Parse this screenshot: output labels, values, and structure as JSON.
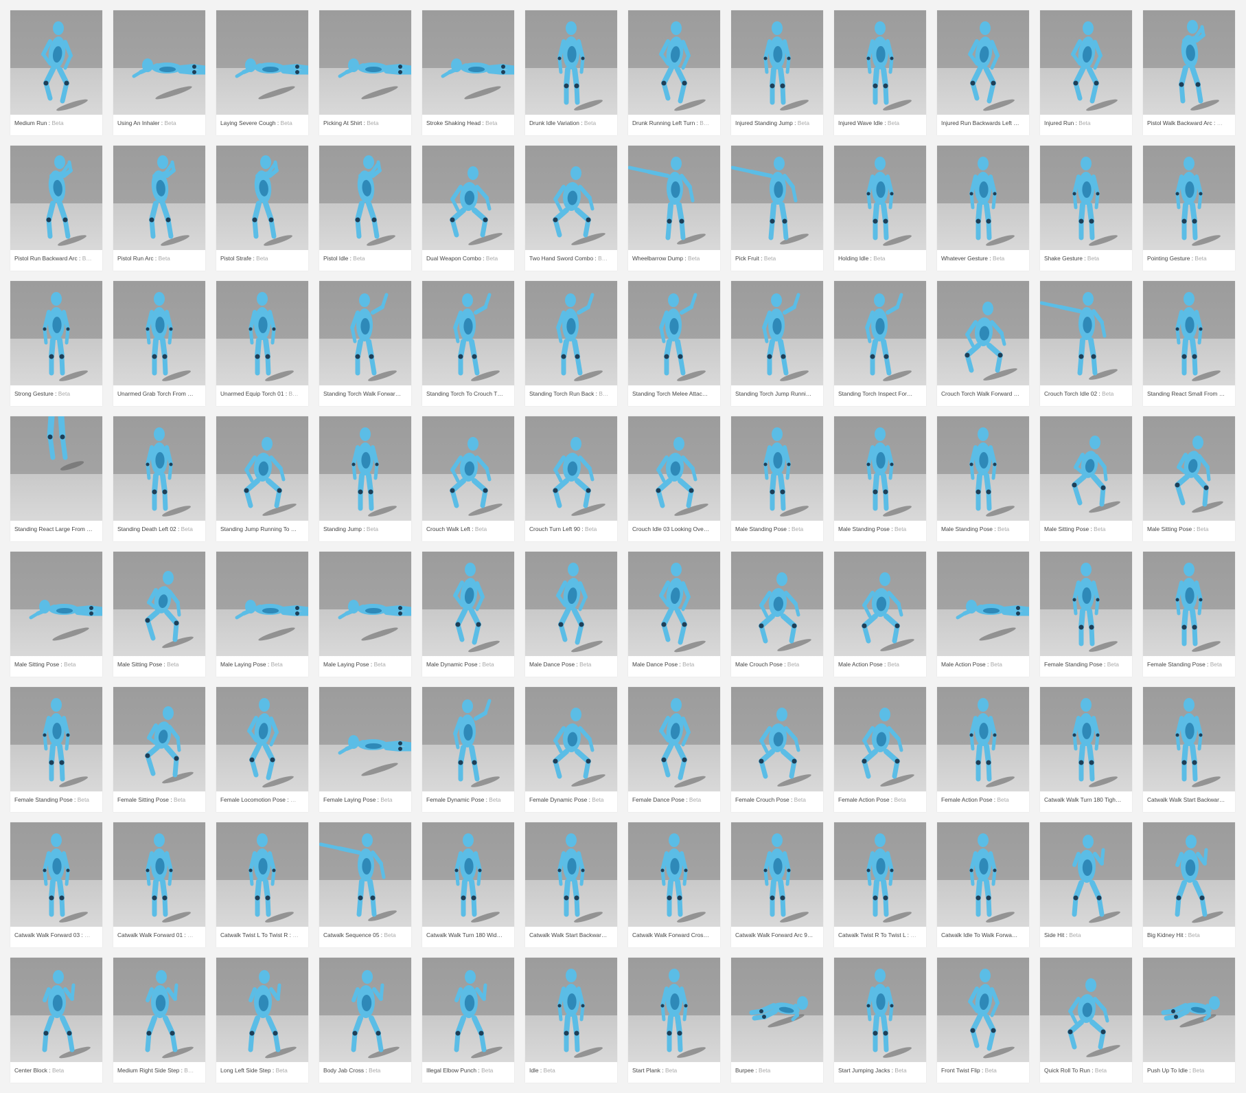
{
  "colors": {
    "figure": "#5bbde6",
    "figure_dark": "#2e89b8",
    "joint": "#1f3f57",
    "shadow": "#5c5c5c"
  },
  "tag_separator": " : ",
  "ellipsis": "…",
  "animations": [
    {
      "name": "Medium Run",
      "tag": "Beta",
      "pose": "run"
    },
    {
      "name": "Using An Inhaler",
      "tag": "Beta",
      "pose": "lying"
    },
    {
      "name": "Laying Severe Cough",
      "tag": "Beta",
      "pose": "lying"
    },
    {
      "name": "Picking At Shirt",
      "tag": "Beta",
      "pose": "lying"
    },
    {
      "name": "Stroke Shaking Head",
      "tag": "Beta",
      "pose": "lying"
    },
    {
      "name": "Drunk Idle Variation",
      "tag": "Beta",
      "pose": "stand"
    },
    {
      "name": "Drunk Running Left Turn",
      "tag": "B…",
      "pose": "run"
    },
    {
      "name": "Injured Standing Jump",
      "tag": "Beta",
      "pose": "stand"
    },
    {
      "name": "Injured Wave Idle",
      "tag": "Beta",
      "pose": "stand"
    },
    {
      "name": "Injured Run Backwards Left …",
      "tag": "",
      "pose": "run"
    },
    {
      "name": "Injured Run",
      "tag": "Beta",
      "pose": "run"
    },
    {
      "name": "Pistol Walk Backward Arc",
      "tag": "…",
      "pose": "aim"
    },
    {
      "name": "Pistol Run Backward Arc",
      "tag": "B…",
      "pose": "aim"
    },
    {
      "name": "Pistol Run Arc",
      "tag": "Beta",
      "pose": "aim"
    },
    {
      "name": "Pistol Strafe",
      "tag": "Beta",
      "pose": "aim"
    },
    {
      "name": "Pistol Idle",
      "tag": "Beta",
      "pose": "aim"
    },
    {
      "name": "Dual Weapon Combo",
      "tag": "Beta",
      "pose": "crouch"
    },
    {
      "name": "Two Hand Sword Combo",
      "tag": "B…",
      "pose": "crouch"
    },
    {
      "name": "Wheelbarrow Dump",
      "tag": "Beta",
      "pose": "tpose"
    },
    {
      "name": "Pick Fruit",
      "tag": "Beta",
      "pose": "tpose"
    },
    {
      "name": "Holding Idle",
      "tag": "Beta",
      "pose": "stand"
    },
    {
      "name": "Whatever Gesture",
      "tag": "Beta",
      "pose": "stand"
    },
    {
      "name": "Shake Gesture",
      "tag": "Beta",
      "pose": "stand"
    },
    {
      "name": "Pointing Gesture",
      "tag": "Beta",
      "pose": "stand"
    },
    {
      "name": "Strong Gesture",
      "tag": "Beta",
      "pose": "stand"
    },
    {
      "name": "Unarmed Grab Torch From …",
      "tag": "",
      "pose": "stand"
    },
    {
      "name": "Unarmed Equip Torch 01",
      "tag": "B…",
      "pose": "stand"
    },
    {
      "name": "Standing Torch Walk Forwar…",
      "tag": "",
      "pose": "wave"
    },
    {
      "name": "Standing Torch To Crouch T…",
      "tag": "",
      "pose": "wave"
    },
    {
      "name": "Standing Torch Run Back",
      "tag": "B…",
      "pose": "wave"
    },
    {
      "name": "Standing Torch Melee Attac…",
      "tag": "",
      "pose": "wave"
    },
    {
      "name": "Standing Torch Jump Runni…",
      "tag": "",
      "pose": "wave"
    },
    {
      "name": "Standing Torch Inspect For…",
      "tag": "",
      "pose": "wave"
    },
    {
      "name": "Crouch Torch Walk Forward …",
      "tag": "",
      "pose": "crouch"
    },
    {
      "name": "Crouch Torch Idle 02",
      "tag": "Beta",
      "pose": "tpose"
    },
    {
      "name": "Standing React Small From …",
      "tag": "",
      "pose": "stand"
    },
    {
      "name": "Standing React Large From …",
      "tag": "",
      "pose": "legs"
    },
    {
      "name": "Standing Death Left 02",
      "tag": "Beta",
      "pose": "stand"
    },
    {
      "name": "Standing Jump Running To …",
      "tag": "",
      "pose": "crouch"
    },
    {
      "name": "Standing Jump",
      "tag": "Beta",
      "pose": "stand"
    },
    {
      "name": "Crouch Walk Left",
      "tag": "Beta",
      "pose": "crouch"
    },
    {
      "name": "Crouch Turn Left 90",
      "tag": "Beta",
      "pose": "crouch"
    },
    {
      "name": "Crouch Idle 03 Looking Ove…",
      "tag": "",
      "pose": "crouch"
    },
    {
      "name": "Male Standing Pose",
      "tag": "Beta",
      "pose": "stand"
    },
    {
      "name": "Male Standing Pose",
      "tag": "Beta",
      "pose": "stand"
    },
    {
      "name": "Male Standing Pose",
      "tag": "Beta",
      "pose": "stand"
    },
    {
      "name": "Male Sitting Pose",
      "tag": "Beta",
      "pose": "sit"
    },
    {
      "name": "Male Sitting Pose",
      "tag": "Beta",
      "pose": "sit"
    },
    {
      "name": "Male Sitting Pose",
      "tag": "Beta",
      "pose": "lying"
    },
    {
      "name": "Male Sitting Pose",
      "tag": "Beta",
      "pose": "sit"
    },
    {
      "name": "Male Laying Pose",
      "tag": "Beta",
      "pose": "lying"
    },
    {
      "name": "Male Laying Pose",
      "tag": "Beta",
      "pose": "lying"
    },
    {
      "name": "Male Dynamic Pose",
      "tag": "Beta",
      "pose": "run"
    },
    {
      "name": "Male Dance Pose",
      "tag": "Beta",
      "pose": "run"
    },
    {
      "name": "Male Dance Pose",
      "tag": "Beta",
      "pose": "run"
    },
    {
      "name": "Male Crouch Pose",
      "tag": "Beta",
      "pose": "crouch"
    },
    {
      "name": "Male Action Pose",
      "tag": "Beta",
      "pose": "crouch"
    },
    {
      "name": "Male Action Pose",
      "tag": "Beta",
      "pose": "lying"
    },
    {
      "name": "Female Standing Pose",
      "tag": "Beta",
      "pose": "stand"
    },
    {
      "name": "Female Standing Pose",
      "tag": "Beta",
      "pose": "stand"
    },
    {
      "name": "Female Standing Pose",
      "tag": "Beta",
      "pose": "stand"
    },
    {
      "name": "Female Sitting Pose",
      "tag": "Beta",
      "pose": "sit"
    },
    {
      "name": "Female Locomotion Pose",
      "tag": "…",
      "pose": "run"
    },
    {
      "name": "Female Laying Pose",
      "tag": "Beta",
      "pose": "lying"
    },
    {
      "name": "Female Dynamic Pose",
      "tag": "Beta",
      "pose": "wave"
    },
    {
      "name": "Female Dynamic Pose",
      "tag": "Beta",
      "pose": "crouch"
    },
    {
      "name": "Female Dance Pose",
      "tag": "Beta",
      "pose": "run"
    },
    {
      "name": "Female Crouch Pose",
      "tag": "Beta",
      "pose": "crouch"
    },
    {
      "name": "Female Action Pose",
      "tag": "Beta",
      "pose": "crouch"
    },
    {
      "name": "Female Action Pose",
      "tag": "Beta",
      "pose": "stand"
    },
    {
      "name": "Catwalk Walk Turn 180 Tigh…",
      "tag": "",
      "pose": "stand"
    },
    {
      "name": "Catwalk Walk Start Backwar…",
      "tag": "",
      "pose": "stand"
    },
    {
      "name": "Catwalk Walk Forward 03",
      "tag": "…",
      "pose": "stand"
    },
    {
      "name": "Catwalk Walk Forward 01",
      "tag": "…",
      "pose": "stand"
    },
    {
      "name": "Catwalk Twist L To Twist R",
      "tag": "…",
      "pose": "stand"
    },
    {
      "name": "Catwalk Sequence 05",
      "tag": "Beta",
      "pose": "tpose"
    },
    {
      "name": "Catwalk Walk Turn 180 Wid…",
      "tag": "",
      "pose": "stand"
    },
    {
      "name": "Catwalk Walk Start Backwar…",
      "tag": "",
      "pose": "stand"
    },
    {
      "name": "Catwalk Walk Forward Cros…",
      "tag": "",
      "pose": "stand"
    },
    {
      "name": "Catwalk Walk Forward Arc 9…",
      "tag": "",
      "pose": "stand"
    },
    {
      "name": "Catwalk Twist R To Twist L",
      "tag": "…",
      "pose": "stand"
    },
    {
      "name": "Catwalk Idle To Walk Forwa…",
      "tag": "",
      "pose": "stand"
    },
    {
      "name": "Side Hit",
      "tag": "Beta",
      "pose": "guard"
    },
    {
      "name": "Big Kidney Hit",
      "tag": "Beta",
      "pose": "guard"
    },
    {
      "name": "Center Block",
      "tag": "Beta",
      "pose": "guard"
    },
    {
      "name": "Medium Right Side Step",
      "tag": "B…",
      "pose": "guard"
    },
    {
      "name": "Long Left Side Step",
      "tag": "Beta",
      "pose": "guard"
    },
    {
      "name": "Body Jab Cross",
      "tag": "Beta",
      "pose": "guard"
    },
    {
      "name": "Illegal Elbow Punch",
      "tag": "Beta",
      "pose": "guard"
    },
    {
      "name": "Idle",
      "tag": "Beta",
      "pose": "stand"
    },
    {
      "name": "Start Plank",
      "tag": "Beta",
      "pose": "stand"
    },
    {
      "name": "Burpee",
      "tag": "Beta",
      "pose": "prone"
    },
    {
      "name": "Start Jumping Jacks",
      "tag": "Beta",
      "pose": "stand"
    },
    {
      "name": "Front Twist Flip",
      "tag": "Beta",
      "pose": "run"
    },
    {
      "name": "Quick Roll To Run",
      "tag": "Beta",
      "pose": "crouch"
    },
    {
      "name": "Push Up To Idle",
      "tag": "Beta",
      "pose": "prone"
    }
  ]
}
